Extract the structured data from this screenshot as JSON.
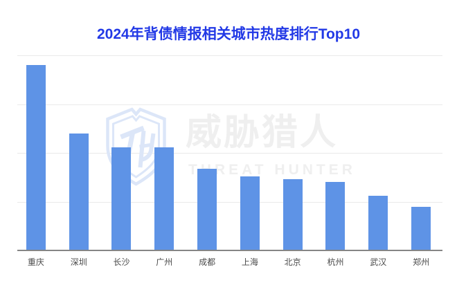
{
  "title": "2024年背债情报相关城市热度排行Top10",
  "watermark": {
    "brand_cn": "威胁猎人",
    "brand_en": "THREAT HUNTER",
    "logo_icon": "shield-th-logo"
  },
  "chart_data": {
    "type": "bar",
    "title": "2024年背债情报相关城市热度排行Top10",
    "categories": [
      "重庆",
      "深圳",
      "长沙",
      "广州",
      "成都",
      "上海",
      "北京",
      "杭州",
      "武汉",
      "郑州"
    ],
    "values": [
      95,
      60,
      53,
      53,
      42,
      38,
      36.5,
      35,
      28,
      22.5
    ],
    "value_note": "relative heat index estimated from gridlines (top gridline = 100); no numeric y-axis labels are shown in the chart",
    "xlabel": "",
    "ylabel": "",
    "ylim": [
      0,
      100
    ],
    "gridline_values": [
      25,
      50,
      75,
      100
    ],
    "grid": true,
    "legend": "none",
    "y_tick_labels_visible": false
  },
  "colors": {
    "background": "#ffffff",
    "title_text": "#2239e6",
    "bar_fill": "#5e93e6",
    "grid_line": "#e9e9e9",
    "axis_line": "#858585",
    "axis_label": "#4a4a4a",
    "watermark_logo": "#dce6f8",
    "watermark_text": "#efefef"
  }
}
